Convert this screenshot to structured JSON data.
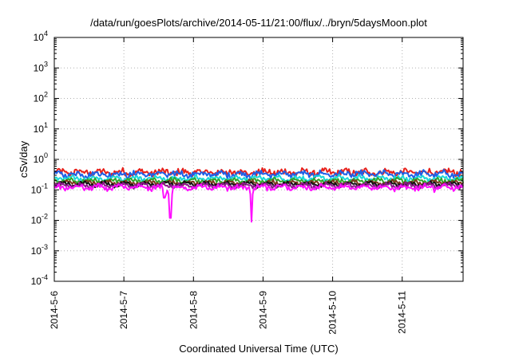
{
  "chart_data": {
    "type": "line",
    "title": "/data/run/goesPlots/archive/2014-05-11/21:00/flux/../bryn/5daysMoon.plot",
    "xlabel": "Coordinated Universal Time (UTC)",
    "ylabel": "cSv/day",
    "y_scale": "log",
    "ylim": [
      0.0001,
      10000
    ],
    "xlim": [
      "2014-05-06",
      "2014-05-11 21:00"
    ],
    "grid": true,
    "legend": "none",
    "x_ticks": [
      "2014-5-6",
      "2014-5-7",
      "2014-5-8",
      "2014-5-9",
      "2014-5-10",
      "2014-5-11"
    ],
    "y_ticks": [
      {
        "base": "10",
        "exp": "-4",
        "value": 0.0001
      },
      {
        "base": "10",
        "exp": "-3",
        "value": 0.001
      },
      {
        "base": "10",
        "exp": "-2",
        "value": 0.01
      },
      {
        "base": "10",
        "exp": "-1",
        "value": 0.1
      },
      {
        "base": "10",
        "exp": "0",
        "value": 1
      },
      {
        "base": "10",
        "exp": "1",
        "value": 10
      },
      {
        "base": "10",
        "exp": "2",
        "value": 100
      },
      {
        "base": "10",
        "exp": "3",
        "value": 1000
      },
      {
        "base": "10",
        "exp": "4",
        "value": 10000
      }
    ],
    "series": [
      {
        "color": "#e8201a",
        "level": 0.38,
        "noise": 0.18,
        "dips": []
      },
      {
        "color": "#1f5fe6",
        "level": 0.33,
        "noise": 0.16,
        "dips": []
      },
      {
        "color": "#1ad8d8",
        "level": 0.24,
        "noise": 0.1,
        "dips": []
      },
      {
        "color": "#2ea62e",
        "level": 0.2,
        "noise": 0.09,
        "dips": []
      },
      {
        "color": "#7a3a1a",
        "level": 0.17,
        "noise": 0.08,
        "dips": []
      },
      {
        "color": "#111111",
        "level": 0.155,
        "noise": 0.07,
        "dips": []
      },
      {
        "color": "#8b1a8b",
        "level": 0.14,
        "noise": 0.08,
        "dips": []
      },
      {
        "color": "#ff10ff",
        "level": 0.12,
        "noise": 0.12,
        "dips": [
          {
            "x": "2014-05-07 14:00",
            "y": 0.055
          },
          {
            "x": "2014-05-07 16:00",
            "y": 0.012
          },
          {
            "x": "2014-05-08 20:00",
            "y": 0.009
          }
        ]
      }
    ]
  }
}
